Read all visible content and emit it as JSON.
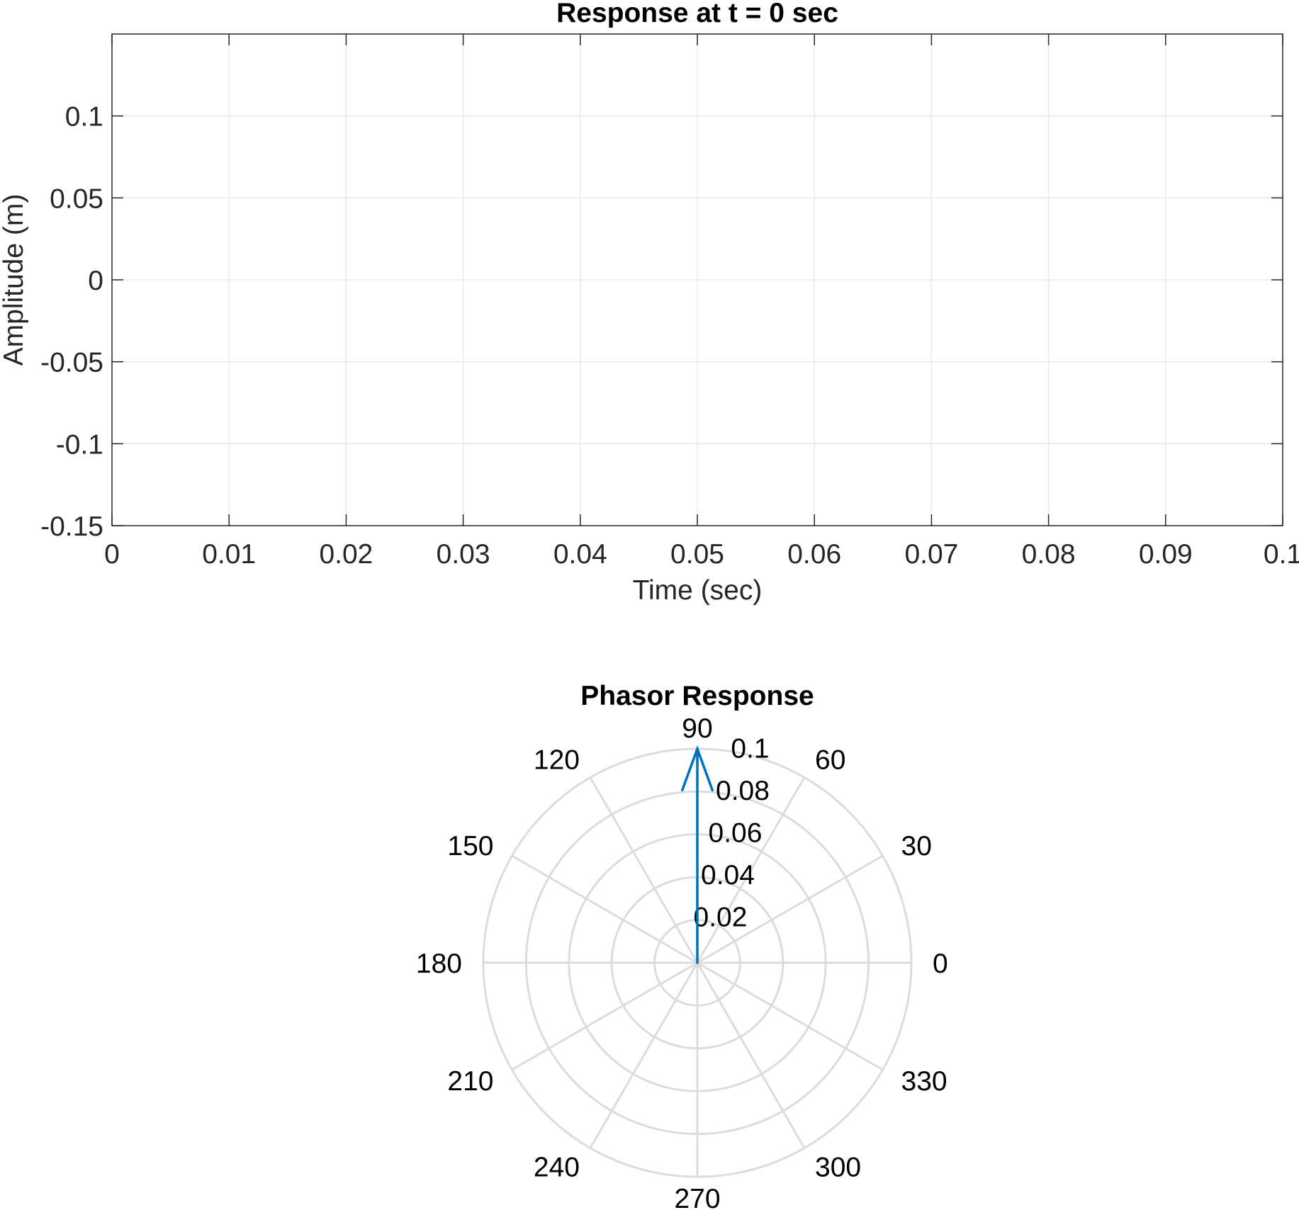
{
  "chart_data": [
    {
      "type": "line",
      "title": "Response at t = 0 sec",
      "xlabel": "Time (sec)",
      "ylabel": "Amplitude (m)",
      "xlim": [
        0,
        0.1
      ],
      "ylim": [
        -0.15,
        0.15
      ],
      "xticks": [
        0,
        0.01,
        0.02,
        0.03,
        0.04,
        0.05,
        0.06,
        0.07,
        0.08,
        0.09,
        0.1
      ],
      "xtick_labels": [
        "0",
        "0.01",
        "0.02",
        "0.03",
        "0.04",
        "0.05",
        "0.06",
        "0.07",
        "0.08",
        "0.09",
        "0.1"
      ],
      "yticks": [
        -0.15,
        -0.1,
        -0.05,
        0,
        0.05,
        0.1
      ],
      "ytick_labels": [
        "-0.15",
        "-0.1",
        "-0.05",
        "0",
        "0.05",
        "0.1"
      ],
      "grid": true,
      "series": []
    },
    {
      "type": "polar",
      "title": "Phasor Response",
      "rlim": [
        0,
        0.1
      ],
      "r_ticks": [
        0.02,
        0.04,
        0.06,
        0.08,
        0.1
      ],
      "r_tick_labels": [
        "0.02",
        "0.04",
        "0.06",
        "0.08",
        "0.1"
      ],
      "theta_ticks": [
        0,
        30,
        60,
        90,
        120,
        150,
        180,
        210,
        240,
        270,
        300,
        330
      ],
      "theta_tick_labels": [
        "0",
        "30",
        "60",
        "90",
        "120",
        "150",
        "180",
        "210",
        "240",
        "270",
        "300",
        "330"
      ],
      "grid": true,
      "series": [
        {
          "name": "phasor",
          "type": "arrow",
          "angle_deg": 90,
          "magnitude": 0.1,
          "color": "#0072BD"
        }
      ]
    }
  ],
  "colors": {
    "axis": "#262626",
    "grid": "#e6e6e6",
    "polar_grid": "#dcdcdc",
    "phasor": "#0072BD"
  }
}
